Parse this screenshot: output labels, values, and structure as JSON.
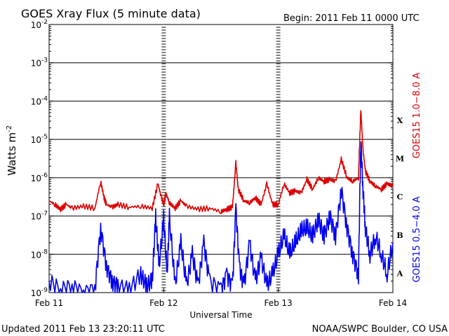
{
  "chart_data": {
    "type": "line",
    "title": "GOES Xray Flux (5 minute data)",
    "begin_label": "Begin:  2011 Feb 11 0000 UTC",
    "ylabel": "Watts m",
    "ylabel_exponent": "-2",
    "xlabel": "Universal Time",
    "y_scale": "log",
    "ylim": [
      1e-09,
      0.01
    ],
    "y_ticks": [
      {
        "value": 0.01,
        "base": "10",
        "exp": "-2"
      },
      {
        "value": 0.001,
        "base": "10",
        "exp": "-3"
      },
      {
        "value": 0.0001,
        "base": "10",
        "exp": "-4"
      },
      {
        "value": 1e-05,
        "base": "10",
        "exp": "-5"
      },
      {
        "value": 1e-06,
        "base": "10",
        "exp": "-6"
      },
      {
        "value": 1e-07,
        "base": "10",
        "exp": "-7"
      },
      {
        "value": 1e-08,
        "base": "10",
        "exp": "-8"
      },
      {
        "value": 1e-09,
        "base": "10",
        "exp": "-9"
      }
    ],
    "x_ticks": [
      "Feb 11",
      "Feb 12",
      "Feb 13",
      "Feb 14"
    ],
    "xlim_days": [
      0,
      3
    ],
    "grid": true,
    "flare_classes": [
      {
        "label": "X",
        "value": 0.0001
      },
      {
        "label": "M",
        "value": 1e-05
      },
      {
        "label": "C",
        "value": 1e-06
      },
      {
        "label": "B",
        "value": 1e-07
      },
      {
        "label": "A",
        "value": 1e-08
      }
    ],
    "series": [
      {
        "name": "GOES15 1.0−8.0 A",
        "color": "#dd0000",
        "x": [
          0,
          0.05,
          0.1,
          0.15,
          0.2,
          0.3,
          0.4,
          0.45,
          0.48,
          0.5,
          0.55,
          0.6,
          0.7,
          0.8,
          0.9,
          0.95,
          0.98,
          1.0,
          1.02,
          1.05,
          1.1,
          1.15,
          1.2,
          1.3,
          1.4,
          1.5,
          1.55,
          1.6,
          1.63,
          1.65,
          1.7,
          1.75,
          1.8,
          1.85,
          1.9,
          1.95,
          2.0,
          2.05,
          2.1,
          2.15,
          2.2,
          2.25,
          2.3,
          2.35,
          2.4,
          2.45,
          2.5,
          2.55,
          2.6,
          2.65,
          2.7,
          2.72,
          2.74,
          2.76,
          2.8,
          2.85,
          2.9,
          2.95,
          3.0
        ],
        "values": [
          2.5e-07,
          2e-07,
          1.5e-07,
          2e-07,
          1.6e-07,
          1.8e-07,
          1.6e-07,
          8e-07,
          3e-07,
          2e-07,
          1.7e-07,
          2e-07,
          1.7e-07,
          1.8e-07,
          1.6e-07,
          7e-07,
          3e-07,
          2e-07,
          4e-07,
          2.2e-07,
          1.6e-07,
          2.5e-07,
          1.8e-07,
          1.5e-07,
          1.6e-07,
          1.3e-07,
          1.5e-07,
          1.7e-07,
          2.5e-06,
          5e-07,
          2.5e-07,
          2.2e-07,
          3e-07,
          2e-07,
          7e-07,
          2e-07,
          2e-07,
          7e-07,
          4e-07,
          4.5e-07,
          4e-07,
          9e-07,
          5e-07,
          1e-06,
          8e-07,
          9e-07,
          8e-07,
          3e-06,
          1e-06,
          8e-07,
          1e-06,
          6e-05,
          5e-06,
          1.5e-06,
          8e-07,
          6e-07,
          5e-07,
          7e-07,
          6e-07
        ]
      },
      {
        "name": "GOES15 0.5−4.0 A",
        "color": "#0000ee",
        "x": [
          0,
          0.1,
          0.2,
          0.3,
          0.4,
          0.45,
          0.5,
          0.55,
          0.6,
          0.7,
          0.8,
          0.85,
          0.9,
          0.93,
          0.96,
          1.0,
          1.03,
          1.05,
          1.1,
          1.15,
          1.2,
          1.25,
          1.3,
          1.35,
          1.4,
          1.5,
          1.55,
          1.6,
          1.63,
          1.66,
          1.7,
          1.75,
          1.8,
          1.85,
          1.9,
          1.95,
          2.0,
          2.05,
          2.1,
          2.15,
          2.2,
          2.25,
          2.3,
          2.35,
          2.4,
          2.45,
          2.5,
          2.55,
          2.6,
          2.65,
          2.7,
          2.72,
          2.74,
          2.76,
          2.8,
          2.85,
          2.9,
          2.95,
          3.0
        ],
        "values": [
          2e-09,
          1.2e-09,
          1.5e-09,
          1e-09,
          1.3e-09,
          5e-08,
          5e-09,
          2e-09,
          1.5e-09,
          1.2e-09,
          3e-09,
          1.5e-09,
          2e-09,
          9e-08,
          5e-09,
          8e-08,
          3e-09,
          9e-08,
          1.5e-09,
          2e-08,
          1.5e-09,
          1e-08,
          1.5e-09,
          2e-08,
          2e-09,
          1.2e-09,
          3e-09,
          1.5e-09,
          1.6e-07,
          5e-09,
          1.5e-09,
          2e-08,
          2e-09,
          8e-09,
          1.5e-09,
          3e-09,
          1e-08,
          3e-08,
          1e-08,
          2e-08,
          4e-08,
          5e-08,
          3e-08,
          8e-08,
          3e-08,
          1e-07,
          3e-08,
          5e-07,
          5e-08,
          1e-08,
          3e-09,
          1e-05,
          5e-07,
          5e-08,
          1e-08,
          3e-08,
          1e-08,
          3e-09,
          2e-08
        ]
      }
    ]
  },
  "footer": {
    "updated": "Updated 2011 Feb 13 23:20:11 UTC",
    "source": "NOAA/SWPC Boulder, CO USA"
  }
}
